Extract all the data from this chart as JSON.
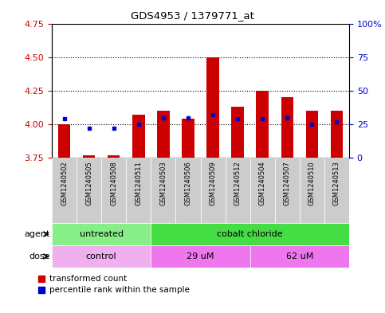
{
  "title": "GDS4953 / 1379771_at",
  "samples": [
    "GSM1240502",
    "GSM1240505",
    "GSM1240508",
    "GSM1240511",
    "GSM1240503",
    "GSM1240506",
    "GSM1240509",
    "GSM1240512",
    "GSM1240504",
    "GSM1240507",
    "GSM1240510",
    "GSM1240513"
  ],
  "bar_values": [
    4.0,
    3.77,
    3.77,
    4.07,
    4.1,
    4.04,
    4.5,
    4.13,
    4.25,
    4.2,
    4.1,
    4.1
  ],
  "bar_bottom": 3.75,
  "blue_dot_values": [
    4.04,
    3.97,
    3.97,
    4.0,
    4.05,
    4.05,
    4.07,
    4.04,
    4.04,
    4.05,
    4.0,
    4.02
  ],
  "ylim": [
    3.75,
    4.75
  ],
  "yticks": [
    3.75,
    4.0,
    4.25,
    4.5,
    4.75
  ],
  "y2lim": [
    0,
    100
  ],
  "y2ticks": [
    0,
    25,
    50,
    75,
    100
  ],
  "y2ticklabels": [
    "0",
    "25",
    "50",
    "75",
    "100%"
  ],
  "dotted_lines": [
    4.0,
    4.25,
    4.5
  ],
  "bar_color": "#cc0000",
  "blue_color": "#0000cc",
  "agent_groups": [
    {
      "label": "untreated",
      "start": 0,
      "end": 4,
      "color": "#88ee88"
    },
    {
      "label": "cobalt chloride",
      "start": 4,
      "end": 12,
      "color": "#44dd44"
    }
  ],
  "dose_groups": [
    {
      "label": "control",
      "start": 0,
      "end": 4,
      "color": "#f0b0f0"
    },
    {
      "label": "29 uM",
      "start": 4,
      "end": 8,
      "color": "#ee77ee"
    },
    {
      "label": "62 uM",
      "start": 8,
      "end": 12,
      "color": "#ee77ee"
    }
  ],
  "legend_red_label": "transformed count",
  "legend_blue_label": "percentile rank within the sample",
  "xlabel_agent": "agent",
  "xlabel_dose": "dose",
  "left_axis_color": "#cc0000",
  "right_axis_color": "#0000cc",
  "bar_width": 0.5,
  "plot_bg": "#ffffff",
  "tick_label_bg": "#cccccc",
  "tick_label_fontsize": 6,
  "bar_fontsize": 7,
  "row_label_fontsize": 8,
  "row_text_fontsize": 8
}
